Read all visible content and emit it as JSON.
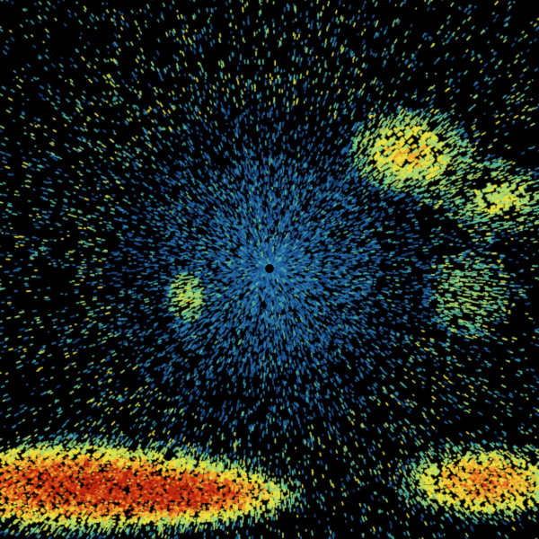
{
  "image": {
    "kind": "radar-reflectivity-scan",
    "background": "#000000",
    "palette": [
      "#1a4f8f",
      "#2a78b0",
      "#3a9fb0",
      "#5cc0a0",
      "#a8d870",
      "#e8e040",
      "#f0a830",
      "#e06020",
      "#c02810"
    ]
  }
}
